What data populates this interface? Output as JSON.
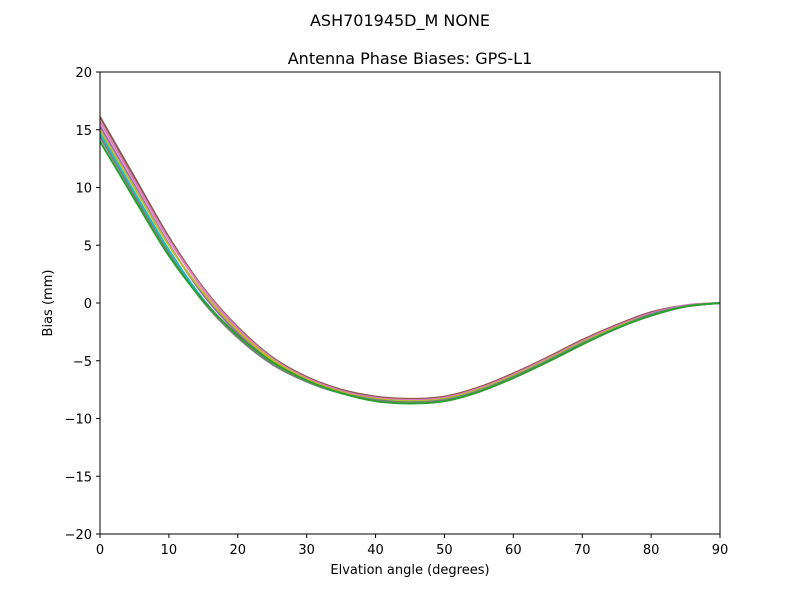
{
  "chart_data": {
    "type": "line",
    "suptitle": "ASH701945D_M    NONE",
    "title": "Antenna Phase Biases: GPS-L1",
    "xlabel": "Elvation angle (degrees)",
    "ylabel": "Bias (mm)",
    "xlim": [
      0,
      90
    ],
    "ylim": [
      -20,
      20
    ],
    "xticks": [
      0,
      10,
      20,
      30,
      40,
      50,
      60,
      70,
      80,
      90
    ],
    "yticks": [
      20,
      15,
      10,
      5,
      0,
      -5,
      -10,
      -15,
      -20
    ],
    "ytick_labels": [
      "20",
      "15",
      "10",
      "5",
      "0",
      "−5",
      "−10",
      "−15",
      "−20"
    ],
    "grid": false,
    "legend": "none",
    "x": [
      0,
      5,
      10,
      15,
      20,
      25,
      30,
      35,
      40,
      45,
      50,
      55,
      60,
      65,
      70,
      75,
      80,
      85,
      90
    ],
    "series": [
      {
        "color": "#8c564b",
        "values": [
          16.1,
          10.9,
          5.7,
          1.3,
          -2.1,
          -4.7,
          -6.4,
          -7.5,
          -8.1,
          -8.3,
          -8.1,
          -7.3,
          -6.1,
          -4.7,
          -3.2,
          -1.9,
          -0.8,
          -0.2,
          0.0
        ]
      },
      {
        "color": "#e377c2",
        "values": [
          15.7,
          10.6,
          5.5,
          1.2,
          -2.2,
          -4.8,
          -6.5,
          -7.6,
          -8.2,
          -8.4,
          -8.2,
          -7.4,
          -6.2,
          -4.8,
          -3.3,
          -2.0,
          -0.9,
          -0.2,
          0.0
        ]
      },
      {
        "color": "#9467bd",
        "values": [
          15.3,
          10.2,
          5.1,
          0.7,
          -2.6,
          -5.1,
          -6.7,
          -7.7,
          -8.3,
          -8.5,
          -8.3,
          -7.5,
          -6.3,
          -4.9,
          -3.4,
          -2.1,
          -1.0,
          -0.3,
          0.0
        ]
      },
      {
        "color": "#bcbd22",
        "values": [
          15.0,
          10.0,
          5.0,
          0.9,
          -2.4,
          -4.9,
          -6.6,
          -7.7,
          -8.3,
          -8.5,
          -8.3,
          -7.5,
          -6.3,
          -4.9,
          -3.4,
          -2.1,
          -1.0,
          -0.3,
          0.0
        ]
      },
      {
        "color": "#17becf",
        "values": [
          14.7,
          9.6,
          4.6,
          0.3,
          -2.9,
          -5.2,
          -6.8,
          -7.8,
          -8.4,
          -8.6,
          -8.4,
          -7.6,
          -6.4,
          -5.0,
          -3.5,
          -2.2,
          -1.0,
          -0.3,
          0.0
        ]
      },
      {
        "color": "#7f7f7f",
        "values": [
          14.4,
          9.3,
          4.3,
          0.1,
          -3.0,
          -5.3,
          -6.8,
          -7.8,
          -8.4,
          -8.6,
          -8.4,
          -7.6,
          -6.4,
          -5.0,
          -3.5,
          -2.2,
          -1.0,
          -0.3,
          0.0
        ]
      },
      {
        "color": "#2ca02c",
        "values": [
          14.0,
          9.0,
          4.1,
          0.2,
          -2.8,
          -5.1,
          -6.7,
          -7.8,
          -8.5,
          -8.7,
          -8.5,
          -7.7,
          -6.5,
          -5.1,
          -3.6,
          -2.2,
          -1.1,
          -0.3,
          0.0
        ]
      }
    ]
  }
}
